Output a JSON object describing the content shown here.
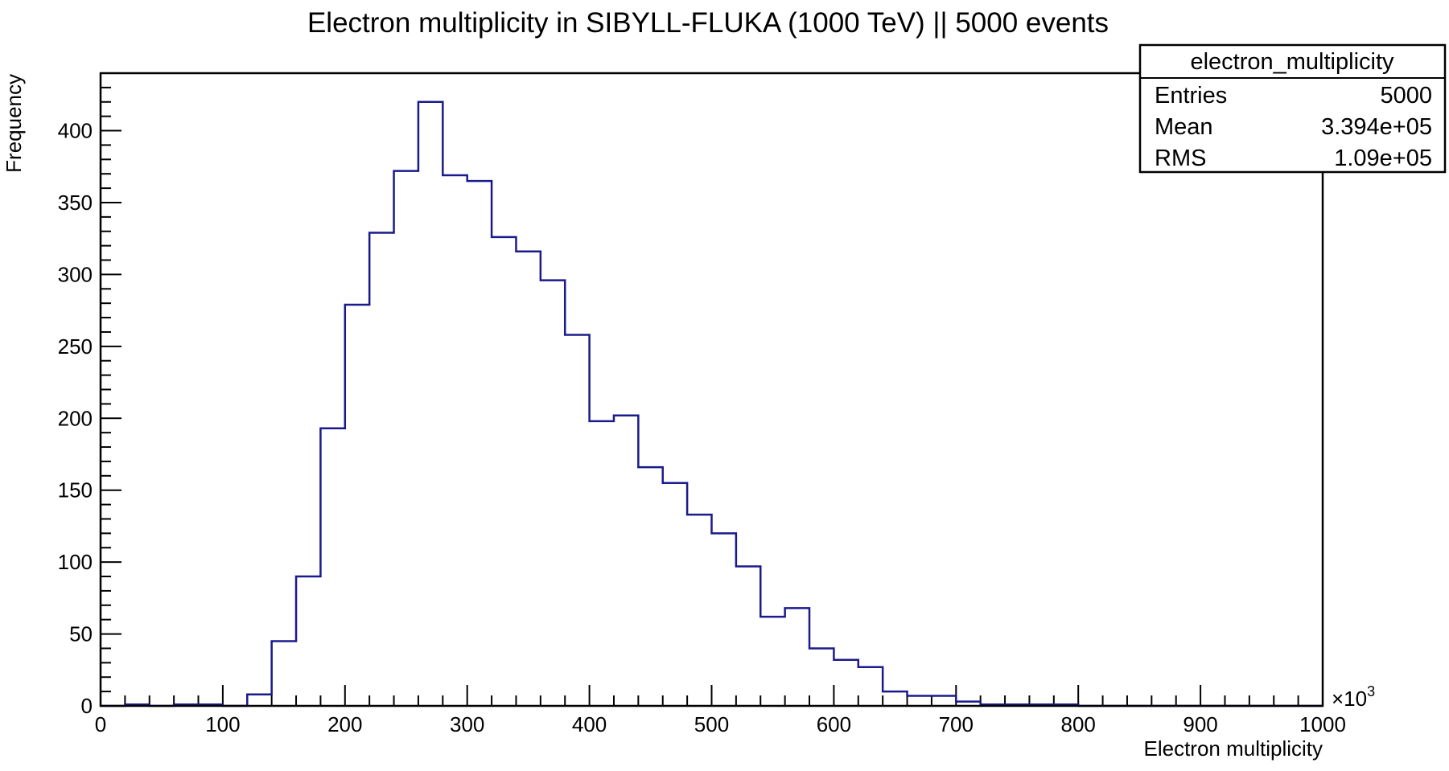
{
  "chart_data": {
    "type": "bar",
    "title": "Electron multiplicity in SIBYLL-FLUKA (1000 TeV)  || 5000 events",
    "xlabel": "Electron multiplicity",
    "ylabel": "Frequency",
    "x_exponent_label": "×10",
    "x_exponent_power": "3",
    "xlim": [
      0,
      1000
    ],
    "ylim": [
      0,
      440
    ],
    "x_ticks": [
      0,
      100,
      200,
      300,
      400,
      500,
      600,
      700,
      800,
      900,
      1000
    ],
    "y_ticks": [
      0,
      50,
      100,
      150,
      200,
      250,
      300,
      350,
      400
    ],
    "bin_edges": [
      0,
      20,
      40,
      60,
      80,
      100,
      120,
      140,
      160,
      180,
      200,
      220,
      240,
      260,
      280,
      300,
      320,
      340,
      360,
      380,
      400,
      420,
      440,
      460,
      480,
      500,
      520,
      540,
      560,
      580,
      600,
      620,
      640,
      660,
      680,
      700,
      720,
      740,
      760,
      780,
      800,
      820,
      840,
      860,
      880,
      900,
      920,
      940,
      960,
      980,
      1000
    ],
    "values": [
      0,
      1,
      0,
      1,
      1,
      0,
      8,
      45,
      90,
      193,
      279,
      329,
      372,
      420,
      369,
      365,
      326,
      316,
      296,
      258,
      198,
      202,
      166,
      155,
      133,
      120,
      97,
      62,
      68,
      40,
      32,
      27,
      10,
      7,
      7,
      3,
      1,
      1,
      1,
      1,
      0,
      0,
      0,
      0,
      0,
      0,
      0,
      0,
      0,
      0
    ],
    "series_color": "#1a1a8c",
    "grid": false,
    "legend_placement": "top-right",
    "stats_box": {
      "title": "electron_multiplicity",
      "rows": [
        {
          "label": "Entries",
          "value": "5000"
        },
        {
          "label": "Mean",
          "value": "3.394e+05"
        },
        {
          "label": "RMS",
          "value": "1.09e+05"
        }
      ]
    }
  }
}
